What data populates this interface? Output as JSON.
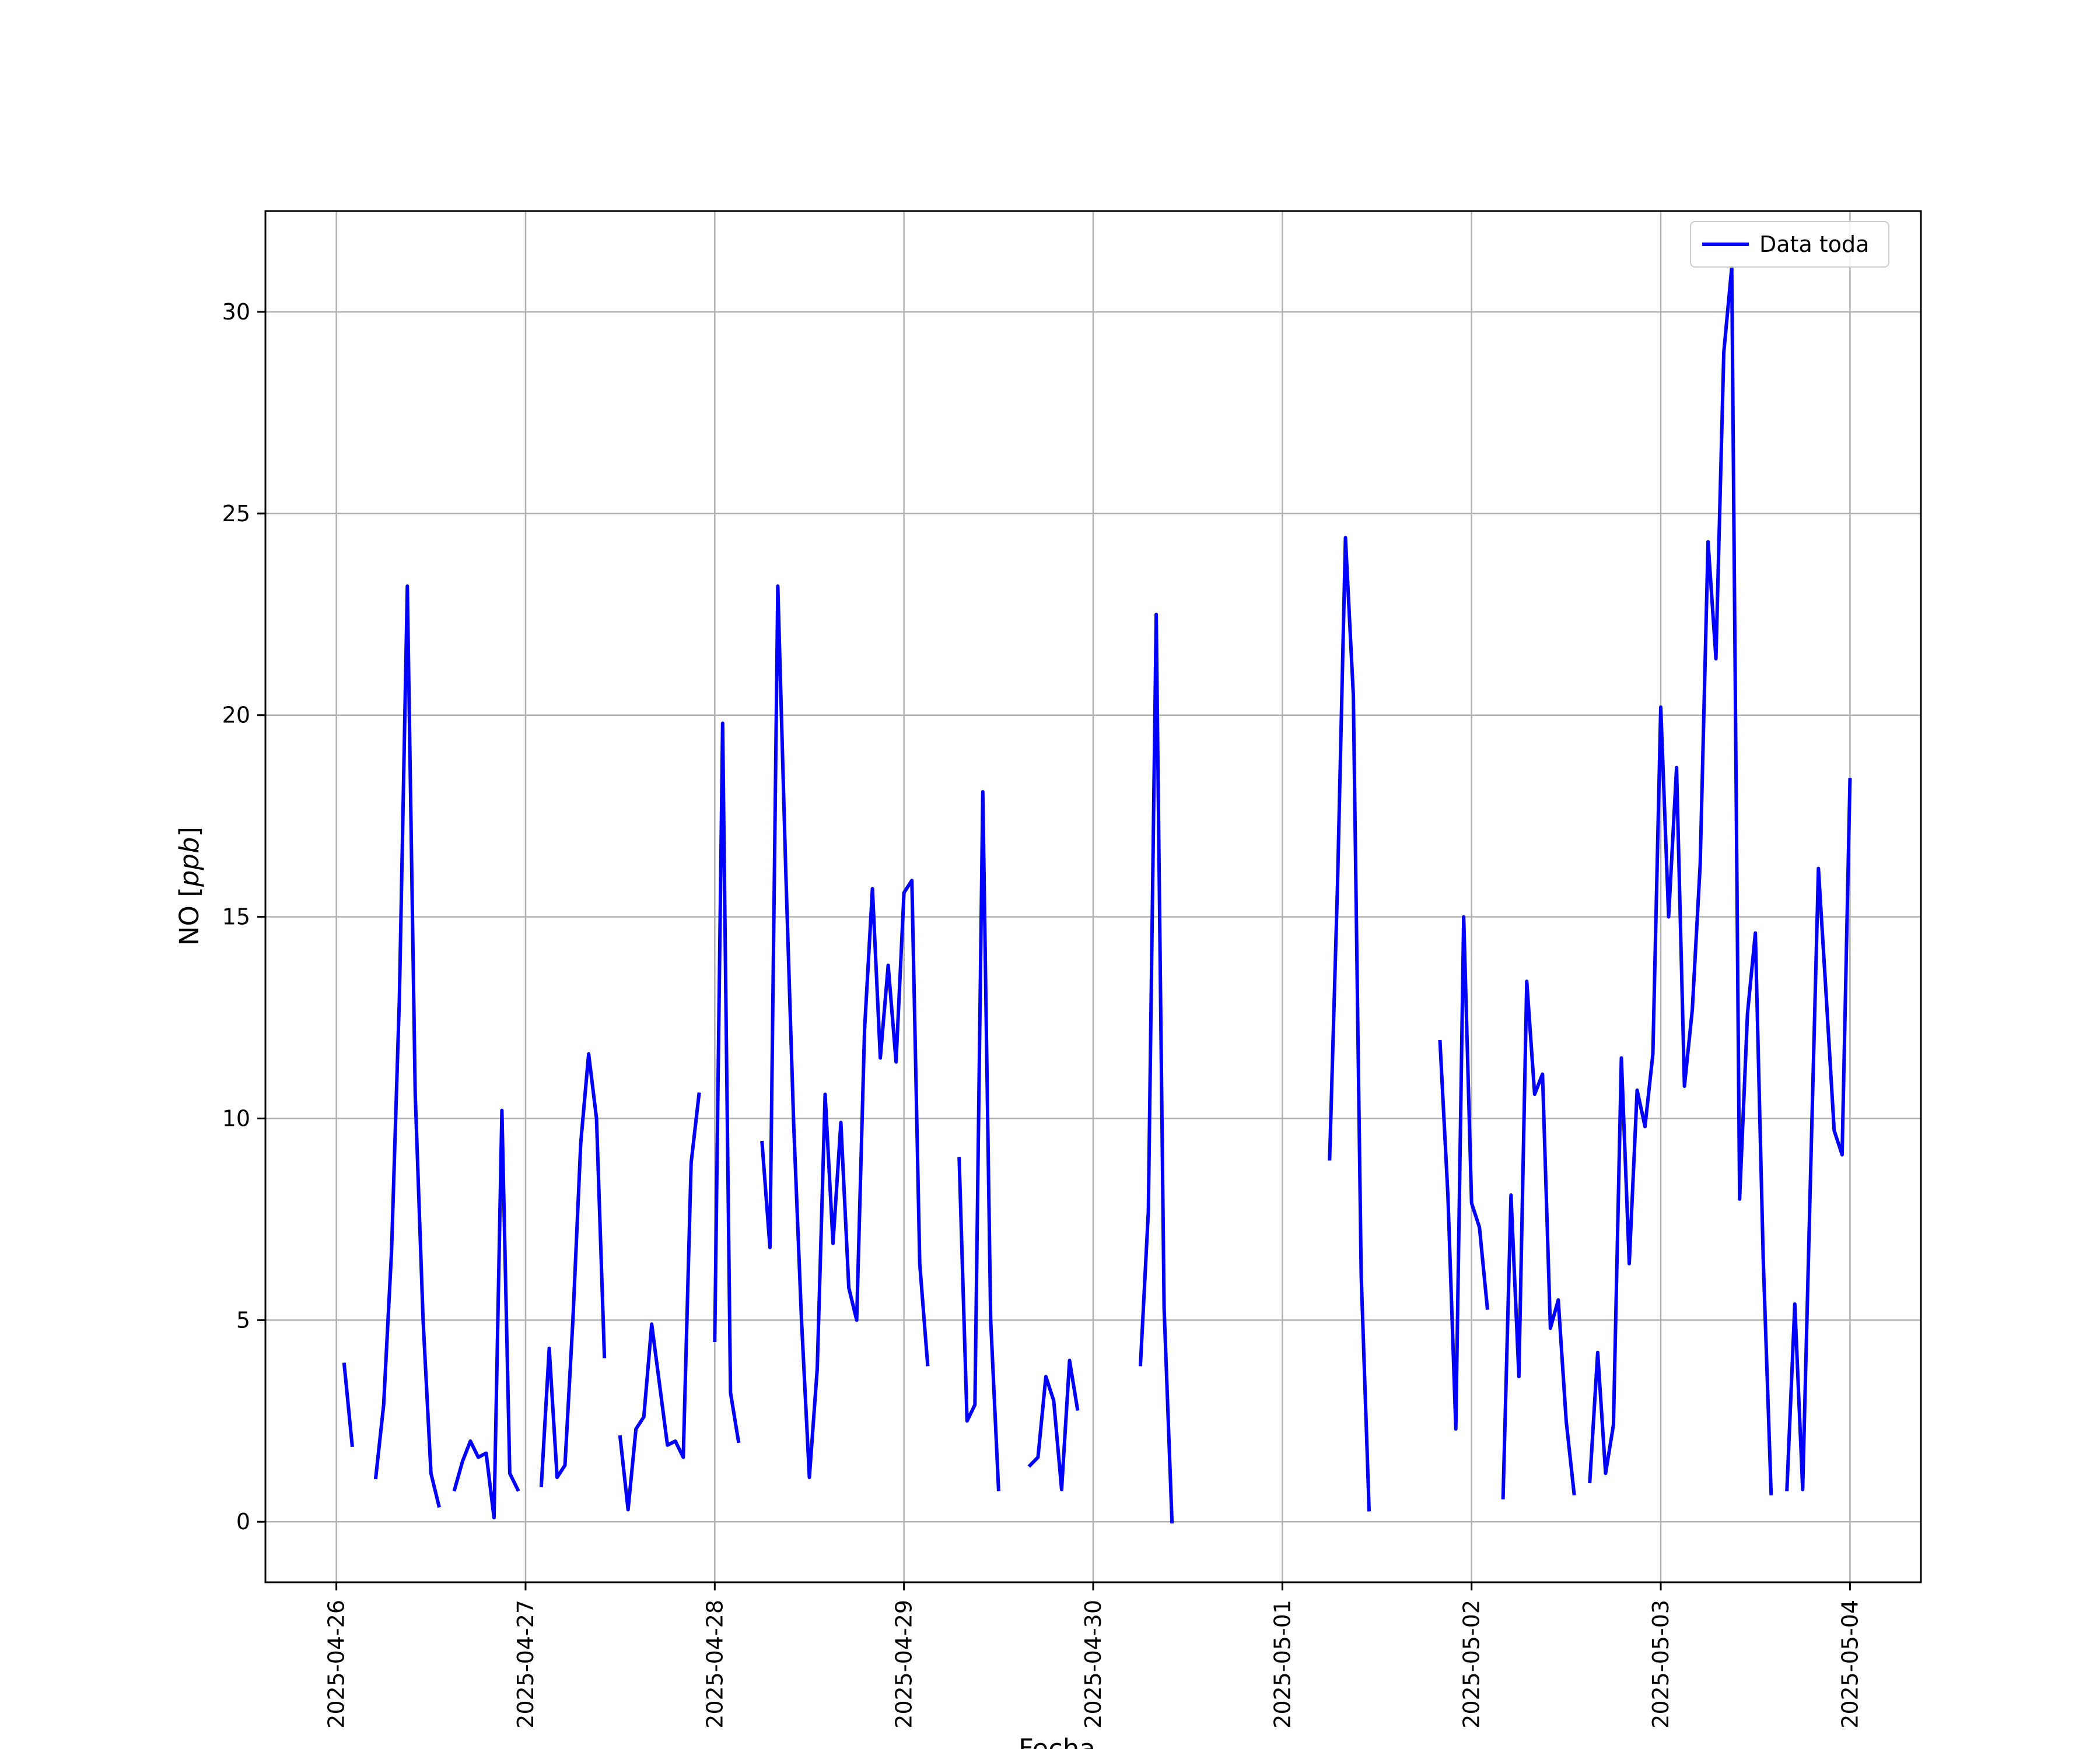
{
  "chart_data": {
    "type": "line",
    "xlabel": "Fecha",
    "ylabel": "NO [ppb]",
    "ylabel_main": "NO [",
    "ylabel_unit": "ppb",
    "ylabel_close": "]",
    "xlim": [
      "2025-04-25T15:00",
      "2025-05-04T09:00"
    ],
    "ylim": [
      -1.5,
      32.5
    ],
    "grid": true,
    "legend_position": "top-right",
    "x_ticks": [
      {
        "value": "2025-04-26T00:00",
        "label": "2025-04-26"
      },
      {
        "value": "2025-04-27T00:00",
        "label": "2025-04-27"
      },
      {
        "value": "2025-04-28T00:00",
        "label": "2025-04-28"
      },
      {
        "value": "2025-04-29T00:00",
        "label": "2025-04-29"
      },
      {
        "value": "2025-04-30T00:00",
        "label": "2025-04-30"
      },
      {
        "value": "2025-05-01T00:00",
        "label": "2025-05-01"
      },
      {
        "value": "2025-05-02T00:00",
        "label": "2025-05-02"
      },
      {
        "value": "2025-05-03T00:00",
        "label": "2025-05-03"
      },
      {
        "value": "2025-05-04T00:00",
        "label": "2025-05-04"
      }
    ],
    "y_ticks": [
      {
        "value": 0,
        "label": "0"
      },
      {
        "value": 5,
        "label": "5"
      },
      {
        "value": 10,
        "label": "10"
      },
      {
        "value": 15,
        "label": "15"
      },
      {
        "value": 20,
        "label": "20"
      },
      {
        "value": 25,
        "label": "25"
      },
      {
        "value": 30,
        "label": "30"
      }
    ],
    "series": [
      {
        "name": "Data toda",
        "color": "#0000ff",
        "segments": [
          [
            [
              "2025-04-26T01:00",
              3.9
            ],
            [
              "2025-04-26T02:00",
              1.9
            ]
          ],
          [
            [
              "2025-04-26T05:00",
              1.1
            ],
            [
              "2025-04-26T06:00",
              2.9
            ],
            [
              "2025-04-26T07:00",
              6.7
            ],
            [
              "2025-04-26T08:00",
              13.0
            ],
            [
              "2025-04-26T09:00",
              23.2
            ],
            [
              "2025-04-26T10:00",
              10.6
            ],
            [
              "2025-04-26T11:00",
              5.0
            ],
            [
              "2025-04-26T12:00",
              1.2
            ],
            [
              "2025-04-26T13:00",
              0.4
            ]
          ],
          [
            [
              "2025-04-26T15:00",
              0.8
            ],
            [
              "2025-04-26T16:00",
              1.5
            ],
            [
              "2025-04-26T17:00",
              2.0
            ],
            [
              "2025-04-26T18:00",
              1.6
            ],
            [
              "2025-04-26T19:00",
              1.7
            ],
            [
              "2025-04-26T20:00",
              0.1
            ],
            [
              "2025-04-26T21:00",
              10.2
            ],
            [
              "2025-04-26T22:00",
              1.2
            ],
            [
              "2025-04-26T23:00",
              0.8
            ]
          ],
          [
            [
              "2025-04-27T02:00",
              0.9
            ],
            [
              "2025-04-27T03:00",
              4.3
            ],
            [
              "2025-04-27T04:00",
              1.1
            ],
            [
              "2025-04-27T05:00",
              1.4
            ],
            [
              "2025-04-27T06:00",
              5.0
            ],
            [
              "2025-04-27T07:00",
              9.4
            ],
            [
              "2025-04-27T08:00",
              11.6
            ],
            [
              "2025-04-27T09:00",
              10.0
            ],
            [
              "2025-04-27T10:00",
              4.1
            ]
          ],
          [
            [
              "2025-04-27T12:00",
              2.1
            ],
            [
              "2025-04-27T13:00",
              0.3
            ],
            [
              "2025-04-27T14:00",
              2.3
            ],
            [
              "2025-04-27T15:00",
              2.6
            ],
            [
              "2025-04-27T16:00",
              4.9
            ],
            [
              "2025-04-27T17:00",
              3.4
            ],
            [
              "2025-04-27T18:00",
              1.9
            ],
            [
              "2025-04-27T19:00",
              2.0
            ],
            [
              "2025-04-27T20:00",
              1.6
            ],
            [
              "2025-04-27T21:00",
              8.9
            ],
            [
              "2025-04-27T22:00",
              10.6
            ]
          ],
          [
            [
              "2025-04-28T00:00",
              4.5
            ],
            [
              "2025-04-28T01:00",
              19.8
            ],
            [
              "2025-04-28T02:00",
              3.2
            ],
            [
              "2025-04-28T03:00",
              2.0
            ]
          ],
          [
            [
              "2025-04-28T06:00",
              9.4
            ],
            [
              "2025-04-28T07:00",
              6.8
            ],
            [
              "2025-04-28T08:00",
              23.2
            ],
            [
              "2025-04-28T09:00",
              16.2
            ],
            [
              "2025-04-28T10:00",
              9.9
            ],
            [
              "2025-04-28T11:00",
              5.0
            ],
            [
              "2025-04-28T12:00",
              1.1
            ],
            [
              "2025-04-28T13:00",
              3.8
            ],
            [
              "2025-04-28T14:00",
              10.6
            ],
            [
              "2025-04-28T15:00",
              6.9
            ],
            [
              "2025-04-28T16:00",
              9.9
            ],
            [
              "2025-04-28T17:00",
              5.8
            ],
            [
              "2025-04-28T18:00",
              5.0
            ],
            [
              "2025-04-28T19:00",
              12.2
            ],
            [
              "2025-04-28T20:00",
              15.7
            ],
            [
              "2025-04-28T21:00",
              11.5
            ],
            [
              "2025-04-28T22:00",
              13.8
            ],
            [
              "2025-04-28T23:00",
              11.4
            ],
            [
              "2025-04-29T00:00",
              15.6
            ],
            [
              "2025-04-29T01:00",
              15.9
            ],
            [
              "2025-04-29T02:00",
              6.4
            ],
            [
              "2025-04-29T03:00",
              3.9
            ]
          ],
          [
            [
              "2025-04-29T07:00",
              9.0
            ],
            [
              "2025-04-29T08:00",
              2.5
            ],
            [
              "2025-04-29T09:00",
              2.9
            ],
            [
              "2025-04-29T10:00",
              18.1
            ],
            [
              "2025-04-29T11:00",
              5.0
            ],
            [
              "2025-04-29T12:00",
              0.8
            ]
          ],
          [
            [
              "2025-04-29T16:00",
              1.4
            ],
            [
              "2025-04-29T17:00",
              1.6
            ],
            [
              "2025-04-29T18:00",
              3.6
            ],
            [
              "2025-04-29T19:00",
              3.0
            ],
            [
              "2025-04-29T20:00",
              0.8
            ],
            [
              "2025-04-29T21:00",
              4.0
            ],
            [
              "2025-04-29T22:00",
              2.8
            ]
          ],
          [
            [
              "2025-04-30T06:00",
              3.9
            ],
            [
              "2025-04-30T07:00",
              7.7
            ],
            [
              "2025-04-30T08:00",
              22.5
            ],
            [
              "2025-04-30T09:00",
              5.3
            ],
            [
              "2025-04-30T10:00",
              0.0
            ]
          ],
          [
            [
              "2025-05-01T06:00",
              9.0
            ],
            [
              "2025-05-01T07:00",
              15.8
            ],
            [
              "2025-05-01T08:00",
              24.4
            ],
            [
              "2025-05-01T09:00",
              20.5
            ],
            [
              "2025-05-01T10:00",
              6.1
            ],
            [
              "2025-05-01T11:00",
              0.3
            ]
          ],
          [
            [
              "2025-05-01T20:00",
              11.9
            ],
            [
              "2025-05-01T21:00",
              8.1
            ],
            [
              "2025-05-01T22:00",
              2.3
            ],
            [
              "2025-05-01T23:00",
              15.0
            ],
            [
              "2025-05-02T00:00",
              7.9
            ],
            [
              "2025-05-02T01:00",
              7.3
            ],
            [
              "2025-05-02T02:00",
              5.3
            ]
          ],
          [
            [
              "2025-05-02T04:00",
              0.6
            ],
            [
              "2025-05-02T05:00",
              8.1
            ],
            [
              "2025-05-02T06:00",
              3.6
            ],
            [
              "2025-05-02T07:00",
              13.4
            ],
            [
              "2025-05-02T08:00",
              10.6
            ],
            [
              "2025-05-02T09:00",
              11.1
            ],
            [
              "2025-05-02T10:00",
              4.8
            ],
            [
              "2025-05-02T11:00",
              5.5
            ],
            [
              "2025-05-02T12:00",
              2.5
            ],
            [
              "2025-05-02T13:00",
              0.7
            ]
          ],
          [
            [
              "2025-05-02T15:00",
              1.0
            ],
            [
              "2025-05-02T16:00",
              4.2
            ],
            [
              "2025-05-02T17:00",
              1.2
            ],
            [
              "2025-05-02T18:00",
              2.4
            ],
            [
              "2025-05-02T19:00",
              11.5
            ],
            [
              "2025-05-02T20:00",
              6.4
            ],
            [
              "2025-05-02T21:00",
              10.7
            ],
            [
              "2025-05-02T22:00",
              9.8
            ],
            [
              "2025-05-02T23:00",
              11.6
            ],
            [
              "2025-05-03T00:00",
              20.2
            ],
            [
              "2025-05-03T01:00",
              15.0
            ],
            [
              "2025-05-03T02:00",
              18.7
            ],
            [
              "2025-05-03T03:00",
              10.8
            ],
            [
              "2025-05-03T04:00",
              12.7
            ],
            [
              "2025-05-03T05:00",
              16.3
            ],
            [
              "2025-05-03T06:00",
              24.3
            ],
            [
              "2025-05-03T07:00",
              21.4
            ],
            [
              "2025-05-03T08:00",
              29.0
            ],
            [
              "2025-05-03T09:00",
              31.1
            ],
            [
              "2025-05-03T10:00",
              8.0
            ],
            [
              "2025-05-03T11:00",
              12.6
            ],
            [
              "2025-05-03T12:00",
              14.6
            ],
            [
              "2025-05-03T13:00",
              6.5
            ],
            [
              "2025-05-03T14:00",
              0.7
            ]
          ],
          [
            [
              "2025-05-03T16:00",
              0.8
            ],
            [
              "2025-05-03T17:00",
              5.4
            ],
            [
              "2025-05-03T18:00",
              0.8
            ],
            [
              "2025-05-03T19:00",
              8.6
            ],
            [
              "2025-05-03T20:00",
              16.2
            ],
            [
              "2025-05-03T21:00",
              13.0
            ],
            [
              "2025-05-03T22:00",
              9.7
            ],
            [
              "2025-05-03T23:00",
              9.1
            ],
            [
              "2025-05-04T00:00",
              18.4
            ]
          ]
        ]
      }
    ]
  }
}
